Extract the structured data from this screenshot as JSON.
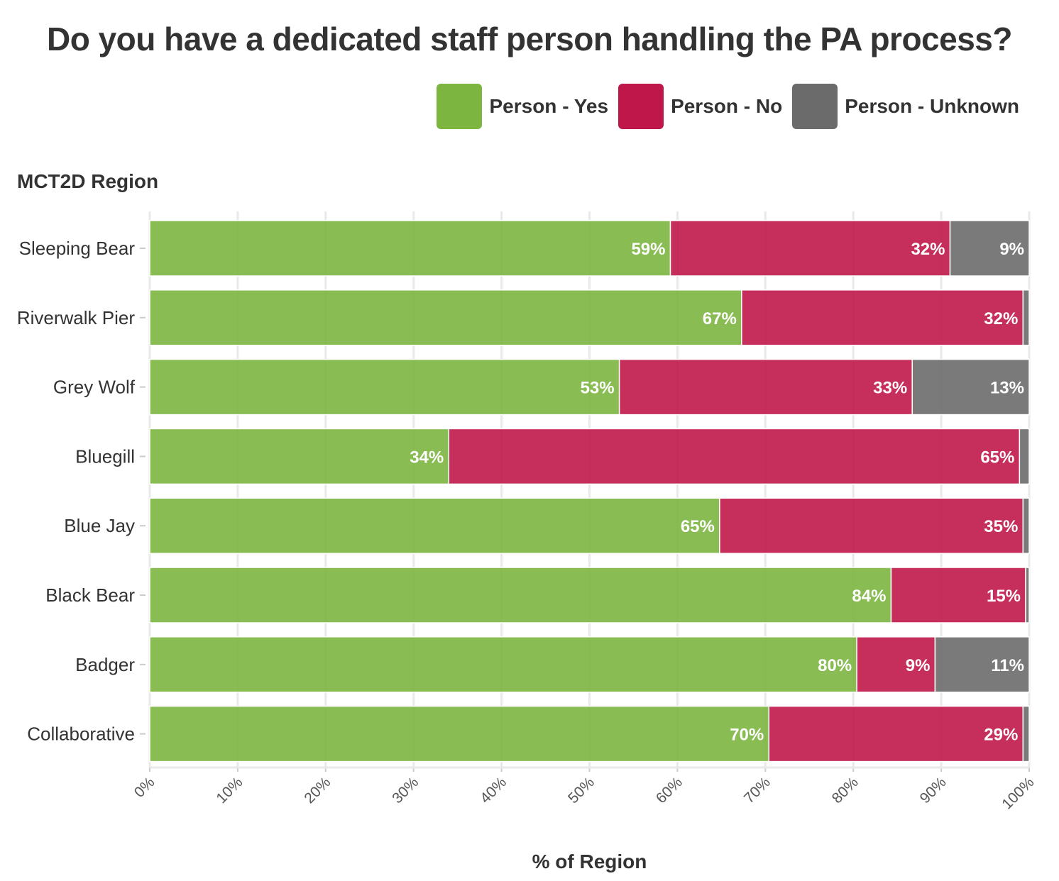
{
  "colors": {
    "yes": "#7cb540",
    "no": "#c0174a",
    "unknown": "#6b6b6b",
    "grid": "#e9e9e9"
  },
  "chart_data": {
    "type": "bar",
    "orientation": "horizontal",
    "stacked": true,
    "title": "Do you have a dedicated staff person handling the PA process?",
    "ylabel": "MCT2D Region",
    "xlabel": "% of Region",
    "xlim": [
      0,
      100
    ],
    "xticks": [
      "0%",
      "10%",
      "20%",
      "30%",
      "40%",
      "50%",
      "60%",
      "70%",
      "80%",
      "90%",
      "100%"
    ],
    "legend": {
      "position": "top-right",
      "entries": [
        "Person - Yes",
        "Person - No",
        "Person - Unknown"
      ]
    },
    "categories": [
      "Sleeping Bear",
      "Riverwalk Pier",
      "Grey Wolf",
      "Bluegill",
      "Blue Jay",
      "Black Bear",
      "Badger",
      "Collaborative"
    ],
    "series": [
      {
        "name": "Person - Yes",
        "color": "#7cb540",
        "values": [
          59.2,
          67.3,
          53.4,
          34.0,
          64.8,
          84.3,
          80.4,
          70.4
        ]
      },
      {
        "name": "Person - No",
        "color": "#c0174a",
        "values": [
          31.8,
          32.0,
          33.3,
          64.9,
          34.5,
          15.3,
          8.9,
          28.9
        ]
      },
      {
        "name": "Person - Unknown",
        "color": "#6b6b6b",
        "values": [
          9.0,
          0.7,
          13.3,
          1.1,
          0.7,
          0.4,
          10.7,
          0.7
        ]
      }
    ],
    "labels": [
      [
        "59%",
        "32%",
        "9%"
      ],
      [
        "67%",
        "32%",
        ""
      ],
      [
        "53%",
        "33%",
        "13%"
      ],
      [
        "34%",
        "65%",
        ""
      ],
      [
        "65%",
        "35%",
        ""
      ],
      [
        "84%",
        "15%",
        ""
      ],
      [
        "80%",
        "9%",
        "11%"
      ],
      [
        "70%",
        "29%",
        ""
      ]
    ]
  }
}
